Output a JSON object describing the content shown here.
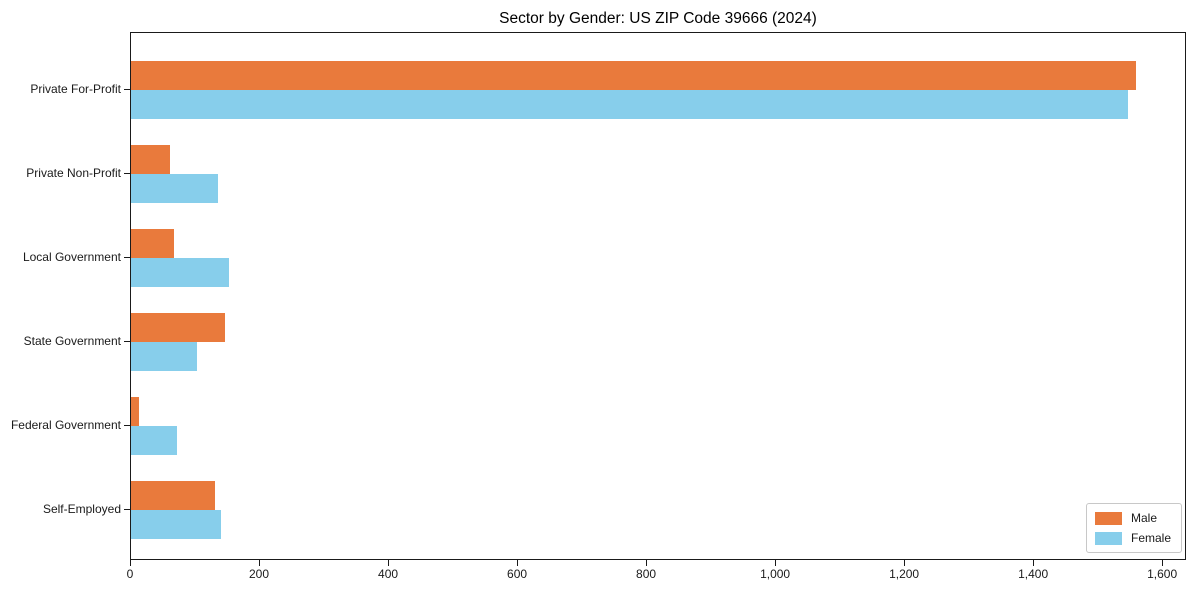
{
  "chart_data": {
    "type": "bar",
    "orientation": "horizontal",
    "title": "Sector by Gender: US ZIP Code 39666 (2024)",
    "categories": [
      "Private For-Profit",
      "Private Non-Profit",
      "Local Government",
      "State Government",
      "Federal Government",
      "Self-Employed"
    ],
    "series": [
      {
        "name": "Male",
        "color": "#e97a3c",
        "values": [
          1558,
          60,
          67,
          146,
          12,
          130
        ]
      },
      {
        "name": "Female",
        "color": "#87ceeb",
        "values": [
          1545,
          135,
          152,
          103,
          72,
          140
        ]
      }
    ],
    "xlabel": "",
    "ylabel": "",
    "xlim": [
      0,
      1637
    ],
    "xticks": [
      0,
      200,
      400,
      600,
      800,
      1000,
      1200,
      1400,
      1600
    ],
    "xtick_labels": [
      "0",
      "200",
      "400",
      "600",
      "800",
      "1,000",
      "1,200",
      "1,400",
      "1,600"
    ],
    "grid": false,
    "legend_position": "lower right"
  },
  "colors": {
    "axis": "#1a1a1a",
    "background": "#ffffff",
    "legend_border": "#c8c8c8"
  }
}
